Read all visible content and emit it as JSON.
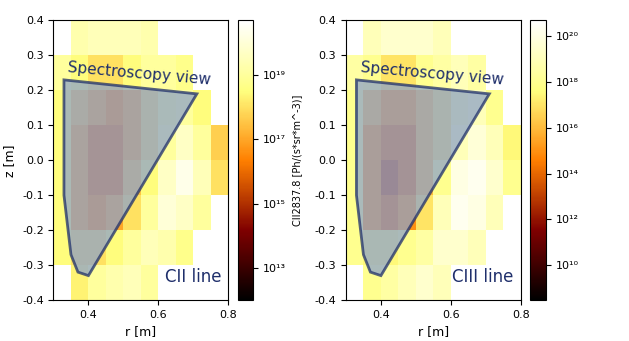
{
  "chart_data": [
    {
      "type": "heatmap",
      "x_label": "r [m]",
      "y_label": "z [m]",
      "xlim": [
        0.3,
        0.8
      ],
      "ylim": [
        -0.4,
        0.4
      ],
      "xticks": [
        0.4,
        0.6,
        0.8
      ],
      "yticks": [
        -0.4,
        -0.3,
        -0.2,
        -0.1,
        0.0,
        0.1,
        0.2,
        0.3,
        0.4
      ],
      "r_edges": [
        0.3,
        0.35,
        0.4,
        0.45,
        0.5,
        0.55,
        0.6,
        0.65,
        0.7,
        0.75,
        0.8
      ],
      "z_edges": [
        -0.4,
        -0.3,
        -0.2,
        -0.1,
        0.0,
        0.1,
        0.2,
        0.3,
        0.4
      ],
      "cells": [
        [
          null,
          2e+18,
          1e+19,
          2e+19,
          3e+19,
          1e+19,
          null,
          null,
          null,
          null
        ],
        [
          3e+18,
          1e+18,
          1e+18,
          3e+18,
          1e+19,
          3e+19,
          2e+19,
          5e+18,
          null,
          null
        ],
        [
          3e+18,
          1e+17,
          3e+16,
          1e+17,
          1e+18,
          1e+19,
          1e+20,
          5e+19,
          1e+19,
          null
        ],
        [
          3e+18,
          1e+17,
          1e+16,
          1e+16,
          3e+17,
          3e+18,
          5e+19,
          2e+20,
          3e+19,
          1e+18
        ],
        [
          3e+18,
          1e+17,
          1e+16,
          1e+16,
          1e+17,
          1e+18,
          1e+19,
          5e+19,
          1e+19,
          5e+17
        ],
        [
          3e+18,
          3e+17,
          1e+17,
          3e+16,
          1e+17,
          1e+18,
          5e+18,
          1e+19,
          3e+18,
          null
        ],
        [
          1e+19,
          3e+18,
          1e+18,
          1e+18,
          3e+18,
          1e+19,
          1e+19,
          5e+18,
          null,
          null
        ],
        [
          null,
          2e+19,
          3e+19,
          3e+19,
          3e+19,
          2e+19,
          null,
          null,
          null,
          null
        ]
      ],
      "colorbar": {
        "label": "CII2837.8 [Ph/(s*sr*m^-3)]",
        "log": true,
        "range": [
          1000000000000.0,
          5e+20
        ],
        "ticks": [
          {
            "value": 10000000000000.0,
            "label": "10¹³"
          },
          {
            "value": 1000000000000000.0,
            "label": "10¹⁵"
          },
          {
            "value": 1e+17,
            "label": "10¹⁷"
          },
          {
            "value": 1e+19,
            "label": "10¹⁹"
          }
        ]
      },
      "view_polygon": {
        "label": "Spectroscopy view",
        "r": [
          0.33,
          0.71,
          0.4,
          0.37,
          0.35,
          0.33
        ],
        "z": [
          0.23,
          0.19,
          -0.33,
          -0.32,
          -0.27,
          -0.1
        ]
      },
      "annotation": "CII line"
    },
    {
      "type": "heatmap",
      "x_label": "r [m]",
      "xlim": [
        0.3,
        0.8
      ],
      "ylim": [
        -0.4,
        0.4
      ],
      "xticks": [
        0.4,
        0.6,
        0.8
      ],
      "yticks": [
        -0.4,
        -0.3,
        -0.2,
        -0.1,
        0.0,
        0.1,
        0.2,
        0.3,
        0.4
      ],
      "r_edges": [
        0.3,
        0.35,
        0.4,
        0.45,
        0.5,
        0.55,
        0.6,
        0.65,
        0.7,
        0.75,
        0.8
      ],
      "z_edges": [
        -0.4,
        -0.3,
        -0.2,
        -0.1,
        0.0,
        0.1,
        0.2,
        0.3,
        0.4
      ],
      "cells": [
        [
          null,
          1e+18,
          3e+18,
          1e+19,
          3e+19,
          1e+19,
          null,
          null,
          null,
          null
        ],
        [
          1e+18,
          3e+17,
          3e+17,
          1e+18,
          3e+18,
          3e+19,
          3e+19,
          1e+19,
          null,
          null
        ],
        [
          1e+18,
          1000000000000000.0,
          100000000000000.0,
          1000000000000000.0,
          1e+17,
          1e+19,
          2e+20,
          1e+20,
          1e+19,
          null
        ],
        [
          1e+18,
          1000000000000000.0,
          10000000000000.0,
          100000000000000.0,
          1e+16,
          1e+18,
          1e+20,
          2e+20,
          3e+19,
          1e+18
        ],
        [
          1e+18,
          1000000000000000.0,
          100000000000000.0,
          100000000000000.0,
          1e+16,
          1e+17,
          1e+19,
          5e+19,
          1e+19,
          3e+17
        ],
        [
          1e+18,
          1e+16,
          1000000000000000.0,
          1000000000000000.0,
          1e+16,
          1e+17,
          3e+18,
          1e+19,
          1e+18,
          null
        ],
        [
          3e+18,
          1e+18,
          1e+17,
          1e+17,
          1e+18,
          3e+18,
          1e+19,
          3e+18,
          null,
          null
        ],
        [
          null,
          1e+19,
          3e+19,
          3e+19,
          3e+19,
          1e+19,
          null,
          null,
          null,
          null
        ]
      ],
      "colorbar": {
        "log": true,
        "range": [
          300000000.0,
          5e+20
        ],
        "ticks": [
          {
            "value": 10000000000.0,
            "label": "10¹⁰"
          },
          {
            "value": 1000000000000.0,
            "label": "10¹²"
          },
          {
            "value": 100000000000000.0,
            "label": "10¹⁴"
          },
          {
            "value": 1e+16,
            "label": "10¹⁶"
          },
          {
            "value": 1e+18,
            "label": "10¹⁸"
          },
          {
            "value": 1e+20,
            "label": "10²⁰"
          }
        ]
      },
      "view_polygon": {
        "label": "Spectroscopy view",
        "r": [
          0.33,
          0.71,
          0.4,
          0.37,
          0.35,
          0.33
        ],
        "z": [
          0.23,
          0.19,
          -0.33,
          -0.32,
          -0.27,
          -0.1
        ]
      },
      "annotation": "CIII line"
    }
  ]
}
